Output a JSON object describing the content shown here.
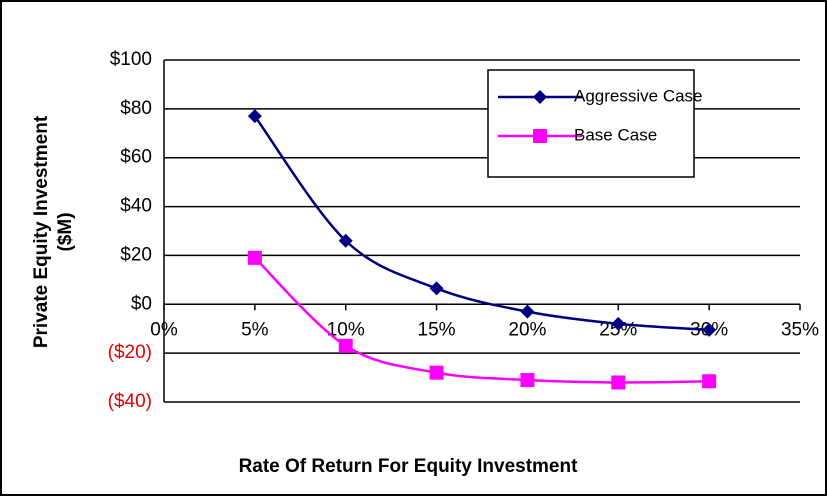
{
  "chart_data": {
    "type": "line",
    "y_label": [
      "Private Equity Investment",
      "($M)"
    ],
    "x_label": "Rate Of Return For Equity Investment",
    "x": [
      5,
      10,
      15,
      20,
      25,
      30
    ],
    "series": [
      {
        "name": "Aggressive Case",
        "color": "#000080",
        "marker": "diamond",
        "values": [
          77,
          26,
          6.5,
          -3,
          -8,
          -10.5
        ]
      },
      {
        "name": "Base Case",
        "color": "#ff00ff",
        "marker": "square",
        "values": [
          19,
          -17,
          -28,
          -31,
          -32,
          -31.5
        ]
      }
    ],
    "xlim": [
      0,
      35
    ],
    "xticks": [
      {
        "value": 0,
        "label": "0%"
      },
      {
        "value": 5,
        "label": "5%"
      },
      {
        "value": 10,
        "label": "10%"
      },
      {
        "value": 15,
        "label": "15%"
      },
      {
        "value": 20,
        "label": "20%"
      },
      {
        "value": 25,
        "label": "25%"
      },
      {
        "value": 30,
        "label": "30%"
      },
      {
        "value": 35,
        "label": "35%"
      }
    ],
    "ylim": [
      -40,
      100
    ],
    "yticks": [
      {
        "value": -40,
        "label": "($40)"
      },
      {
        "value": -20,
        "label": "($20)"
      },
      {
        "value": 0,
        "label": "$0"
      },
      {
        "value": 20,
        "label": "$20"
      },
      {
        "value": 40,
        "label": "$40"
      },
      {
        "value": 60,
        "label": "$60"
      },
      {
        "value": 80,
        "label": "$80"
      },
      {
        "value": 100,
        "label": "$100"
      }
    ],
    "grid": true,
    "legend": "upper right"
  }
}
